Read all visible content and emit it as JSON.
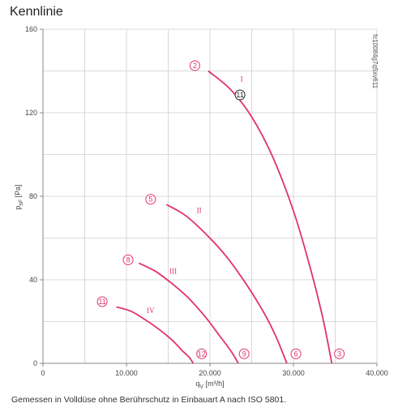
{
  "title": "Kennlinie",
  "caption": "Gemessen in Volldüse ohne Berührschutz in Einbauart A nach ISO 5801.",
  "reference_code": "fc10084g7q5xv611",
  "colors": {
    "curve": "#e0336b",
    "grid": "#cfcfcf",
    "axis": "#888888",
    "marker_dark": "#222222"
  },
  "chart_data": {
    "type": "line",
    "title": "Kennlinie",
    "xlabel": "q",
    "xlabel_sub": "V",
    "xlabel_unit": "[m³/h]",
    "ylabel": "p",
    "ylabel_sub": "sF",
    "ylabel_unit": "[Pa]",
    "xlim": [
      0,
      40000
    ],
    "ylim": [
      0,
      160
    ],
    "x_ticks": [
      0,
      10000,
      20000,
      30000,
      40000
    ],
    "x_tick_labels": [
      "0",
      "10.000",
      "20.000",
      "30.000",
      "40.000"
    ],
    "y_ticks": [
      0,
      40,
      80,
      120,
      160
    ],
    "y_tick_labels": [
      "0",
      "40",
      "80",
      "120",
      "160"
    ],
    "grid_x_step": 5000,
    "grid_y_step": 20,
    "grid": true,
    "series": [
      {
        "name": "I",
        "x": [
          19800,
          22500,
          25000,
          27500,
          30000,
          32000,
          33500,
          34600
        ],
        "y": [
          140,
          131,
          118,
          99,
          73,
          46,
          22,
          0
        ]
      },
      {
        "name": "II",
        "x": [
          14800,
          17000,
          19500,
          22000,
          24500,
          26500,
          28000,
          29200
        ],
        "y": [
          76,
          71,
          62,
          51,
          37,
          24,
          12,
          0
        ]
      },
      {
        "name": "III",
        "x": [
          11500,
          13500,
          15500,
          17500,
          19500,
          21000,
          22500,
          23400
        ],
        "y": [
          48,
          44,
          38,
          31,
          22,
          14,
          6,
          0
        ]
      },
      {
        "name": "IV",
        "x": [
          8800,
          10500,
          12200,
          14000,
          15500,
          16700,
          17500,
          18000
        ],
        "y": [
          27,
          25,
          21,
          16,
          11,
          6,
          3,
          0
        ]
      }
    ],
    "series_labels": [
      {
        "text": "I",
        "x": 23800,
        "y": 135
      },
      {
        "text": "II",
        "x": 18700,
        "y": 72
      },
      {
        "text": "III",
        "x": 15600,
        "y": 43
      },
      {
        "text": "IV",
        "x": 12900,
        "y": 24
      }
    ],
    "operating_points": [
      {
        "label": "2",
        "x": 18200,
        "y": 141,
        "style": "curve"
      },
      {
        "label": "11",
        "x": 23600,
        "y": 127,
        "style": "dark"
      },
      {
        "label": "5",
        "x": 12900,
        "y": 77,
        "style": "curve"
      },
      {
        "label": "8",
        "x": 10200,
        "y": 48,
        "style": "curve"
      },
      {
        "label": "11",
        "x": 7100,
        "y": 28,
        "style": "curve"
      },
      {
        "label": "12",
        "x": 19000,
        "y": 3,
        "style": "curve"
      },
      {
        "label": "9",
        "x": 24100,
        "y": 3,
        "style": "curve"
      },
      {
        "label": "6",
        "x": 30300,
        "y": 3,
        "style": "curve"
      },
      {
        "label": "3",
        "x": 35500,
        "y": 3,
        "style": "curve"
      }
    ]
  }
}
